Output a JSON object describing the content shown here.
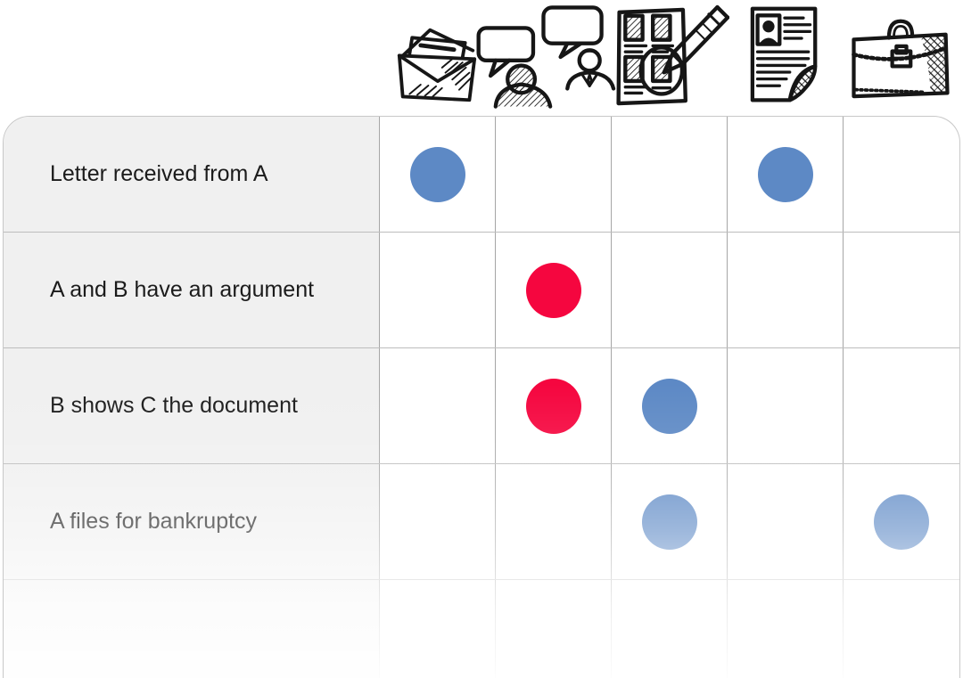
{
  "matrix": {
    "columns": [
      {
        "icon": "envelope-icon"
      },
      {
        "icon": "conversation-icon"
      },
      {
        "icon": "document-review-icon"
      },
      {
        "icon": "profile-document-icon"
      },
      {
        "icon": "briefcase-icon"
      }
    ],
    "rows": [
      {
        "label": "Letter received from A",
        "dots": [
          {
            "col": 0,
            "color": "blue"
          },
          {
            "col": 3,
            "color": "blue"
          }
        ]
      },
      {
        "label": "A and B have an argument",
        "dots": [
          {
            "col": 1,
            "color": "red"
          }
        ]
      },
      {
        "label": "B shows C the document",
        "dots": [
          {
            "col": 1,
            "color": "red"
          },
          {
            "col": 2,
            "color": "blue"
          }
        ]
      },
      {
        "label": "A files for bankruptcy",
        "dots": [
          {
            "col": 2,
            "color": "blue"
          },
          {
            "col": 4,
            "color": "blue"
          }
        ]
      },
      {
        "label": "",
        "dots": []
      }
    ]
  },
  "colors": {
    "dot_blue": "#5d89c5",
    "dot_red": "#f5063f",
    "label_bg": "#f0f0f0",
    "grid_line_vertical": "#a6a6a6",
    "grid_line_horizontal": "#bdbdbd",
    "outer_border": "#c8c8c8",
    "label_text": "#1b1b1b"
  }
}
